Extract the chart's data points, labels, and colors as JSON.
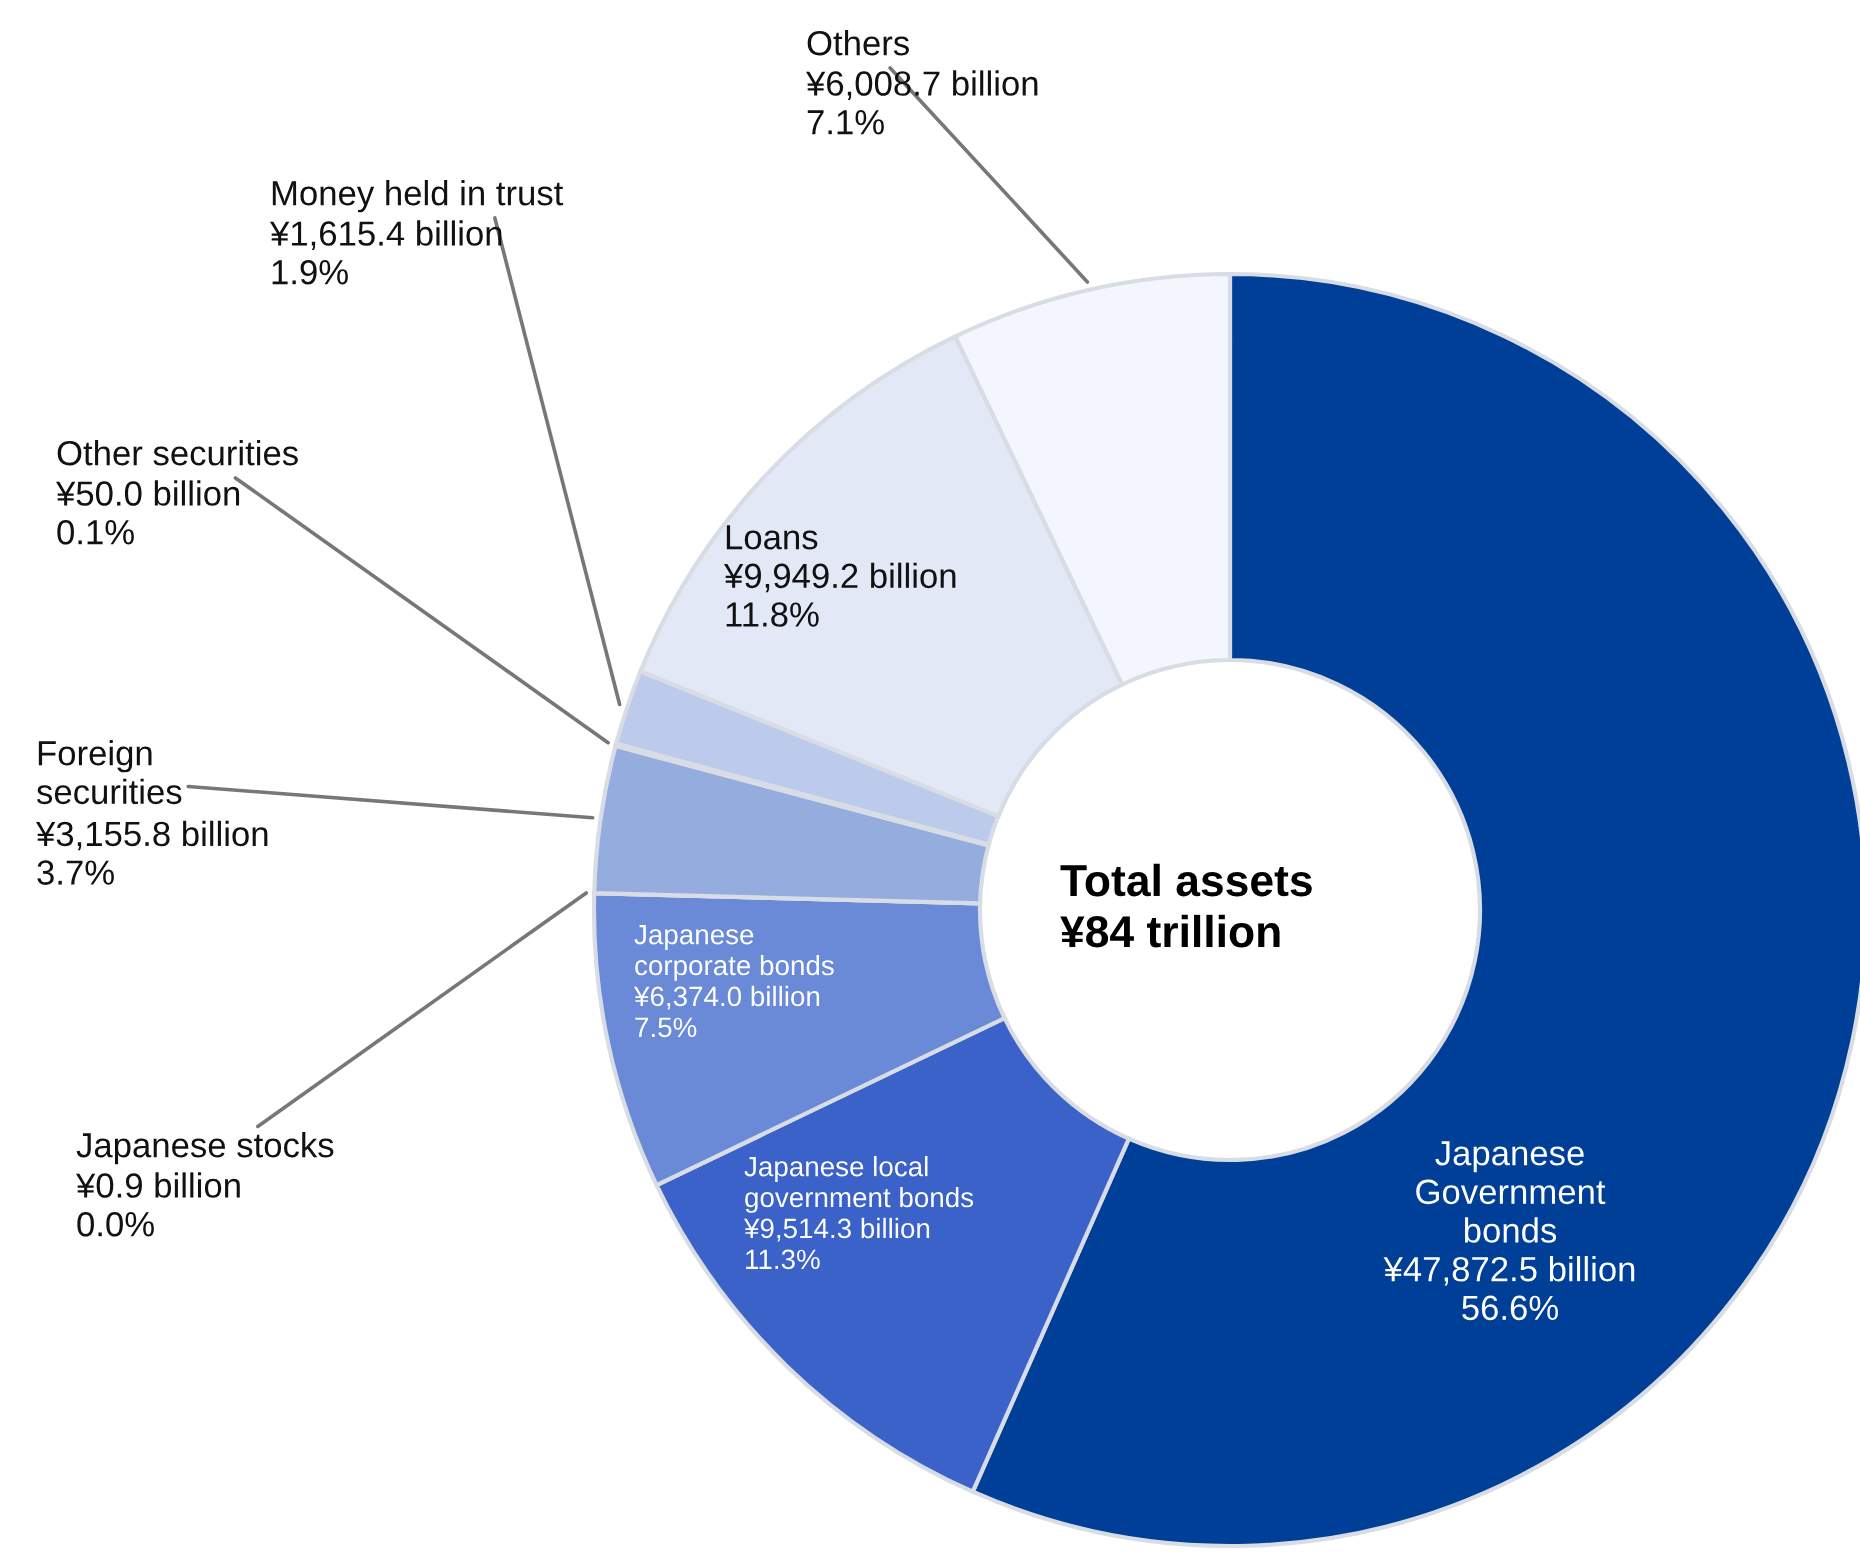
{
  "chart_data": {
    "type": "donut",
    "categories": [
      "Japanese\nGovernment\nbonds",
      "Japanese local\ngovernment bonds",
      "Japanese\ncorporate bonds",
      "Japanese stocks",
      "Foreign\nsecurities",
      "Other securities",
      "Money held in trust",
      "Loans",
      "Others"
    ],
    "values": [
      47872.5,
      9514.3,
      6374.0,
      0.9,
      3155.8,
      50.0,
      1615.4,
      9949.2,
      6008.7
    ],
    "value_labels": [
      "¥47,872.5 billion",
      "¥9,514.3 billion",
      "¥6,374.0 billion",
      "¥0.9 billion",
      "¥3,155.8 billion",
      "¥50.0 billion",
      "¥1,615.4 billion",
      "¥9,949.2 billion",
      "¥6,008.7 billion"
    ],
    "colors": [
      "#003f97",
      "#3a62c8",
      "#6a8ad8",
      "#7f9bdc",
      "#95acdf",
      "#a9bce6",
      "#bccbeb",
      "#e3e8f6",
      "#f3f7fd"
    ],
    "annotations": [
      "Total assets\n¥84 trillion",
      "56.6%",
      "11.3%",
      "7.5%",
      "0.0%",
      "3.7%",
      "0.1%",
      "1.9%",
      "11.8%",
      "7.1%"
    ],
    "legend": false
  }
}
